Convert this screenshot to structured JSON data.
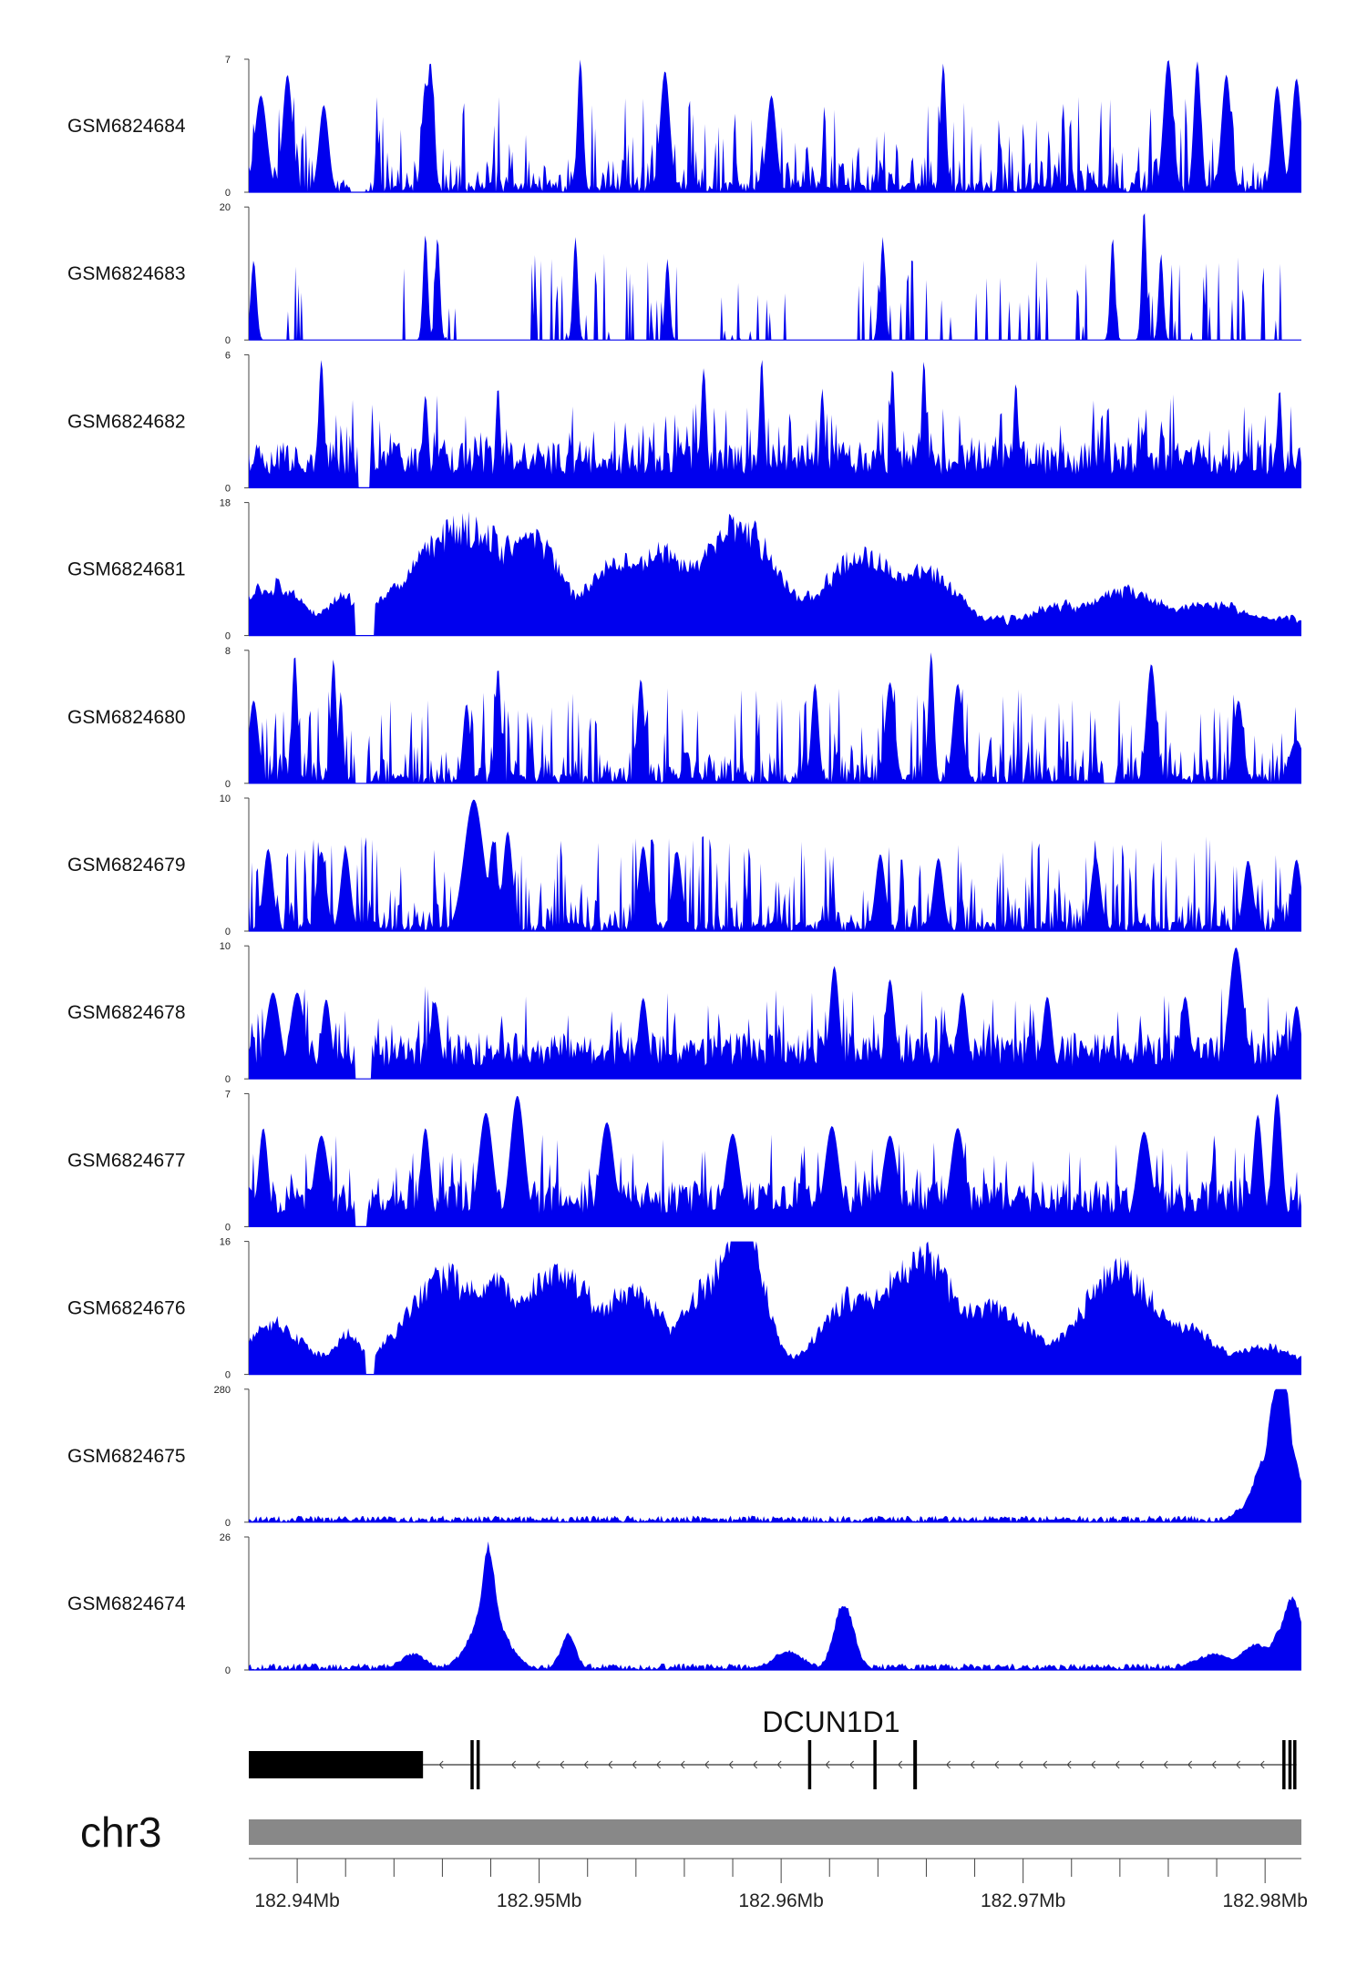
{
  "chart_data": {
    "type": "area",
    "title": "",
    "color": "#0000ee",
    "genome": {
      "chrom": "chr3",
      "xlim": [
        182.938,
        182.9815
      ],
      "axis_ticks": [
        182.94,
        182.95,
        182.96,
        182.97,
        182.98
      ],
      "axis_tick_labels": [
        "182.94Mb",
        "182.95Mb",
        "182.96Mb",
        "182.97Mb",
        "182.98Mb"
      ],
      "minor_ticks": [
        182.942,
        182.944,
        182.946,
        182.948,
        182.952,
        182.954,
        182.956,
        182.958,
        182.962,
        182.964,
        182.966,
        182.968,
        182.972,
        182.974,
        182.976,
        182.978
      ]
    },
    "gene": {
      "name": "DCUN1D1",
      "strand": "-",
      "start": 182.938,
      "end": 182.9813,
      "exons": [
        {
          "start": 182.938,
          "end": 182.9452,
          "thick": true
        },
        {
          "start": 182.9472,
          "end": 182.94725,
          "thick": false
        },
        {
          "start": 182.94745,
          "end": 182.9475,
          "thick": false
        },
        {
          "start": 182.96115,
          "end": 182.96125,
          "thick": false
        },
        {
          "start": 182.96385,
          "end": 182.96395,
          "thick": false
        },
        {
          "start": 182.9655,
          "end": 182.96565,
          "thick": false
        },
        {
          "start": 182.98075,
          "end": 182.9808,
          "thick": false
        },
        {
          "start": 182.981,
          "end": 182.98105,
          "thick": false
        },
        {
          "start": 182.9812,
          "end": 182.98125,
          "thick": false
        }
      ]
    },
    "series": [
      {
        "name": "GSM6824684",
        "ymax": 7,
        "ylim": [
          0,
          7
        ],
        "profile": "sparse",
        "seed": 11,
        "gaps": [
          [
            182.9422,
            182.9428
          ]
        ],
        "peaks": [
          [
            182.9385,
            5.1,
            0.00025
          ],
          [
            182.9396,
            6.2,
            0.0002
          ],
          [
            182.9411,
            4.6,
            0.0002
          ],
          [
            182.9453,
            5.8,
            0.00015
          ],
          [
            182.9455,
            6.9,
            0.00015
          ],
          [
            182.9517,
            7.0,
            0.00012
          ],
          [
            182.9552,
            6.4,
            0.0002
          ],
          [
            182.9596,
            5.1,
            0.0002
          ],
          [
            182.9667,
            6.8,
            0.00012
          ],
          [
            182.976,
            7.0,
            0.0002
          ],
          [
            182.9772,
            6.9,
            0.00015
          ],
          [
            182.9784,
            6.2,
            0.0002
          ],
          [
            182.9805,
            5.6,
            0.0002
          ],
          [
            182.9813,
            6.0,
            0.0002
          ]
        ]
      },
      {
        "name": "GSM6824683",
        "ymax": 20,
        "ylim": [
          0,
          20
        ],
        "profile": "spiky",
        "seed": 23,
        "gaps": [
          [
            182.9386,
            182.9393
          ],
          [
            182.9404,
            182.9443
          ],
          [
            182.9467,
            182.9493
          ],
          [
            182.9604,
            182.9625
          ]
        ],
        "peaks": [
          [
            182.9382,
            12.0,
            0.00012
          ],
          [
            182.9453,
            16.0,
            0.0001
          ],
          [
            182.9458,
            15.5,
            0.0001
          ],
          [
            182.9515,
            15.5,
            0.0001
          ],
          [
            182.9553,
            12.2,
            0.0001
          ],
          [
            182.9642,
            15.5,
            0.0001
          ],
          [
            182.9737,
            15.5,
            0.0001
          ],
          [
            182.975,
            19.8,
            0.0001
          ],
          [
            182.9757,
            13.0,
            0.0001
          ]
        ]
      },
      {
        "name": "GSM6824682",
        "ymax": 6,
        "ylim": [
          0,
          6
        ],
        "profile": "dense",
        "seed": 37,
        "gaps": [
          [
            182.9425,
            182.943
          ]
        ],
        "peaks": [
          [
            182.941,
            5.8,
            0.00012
          ],
          [
            182.9453,
            4.2,
            0.00012
          ],
          [
            182.9483,
            4.6,
            0.0001
          ],
          [
            182.9568,
            5.4,
            0.00012
          ],
          [
            182.9592,
            5.9,
            0.0001
          ],
          [
            182.9617,
            4.5,
            0.0001
          ],
          [
            182.9646,
            5.5,
            0.0001
          ],
          [
            182.9659,
            5.8,
            0.0001
          ],
          [
            182.9697,
            4.8,
            0.0001
          ],
          [
            182.9806,
            4.5,
            0.0001
          ]
        ]
      },
      {
        "name": "GSM6824681",
        "ymax": 18,
        "ylim": [
          0,
          18
        ],
        "profile": "broad",
        "seed": 41,
        "gaps": [
          [
            182.9424,
            182.9432
          ]
        ],
        "peaks": [
          [
            182.939,
            6.0,
            0.0012
          ],
          [
            182.942,
            4.5,
            0.0008
          ],
          [
            182.947,
            14.5,
            0.0022
          ],
          [
            182.9498,
            10.5,
            0.0012
          ],
          [
            182.9533,
            9.5,
            0.0012
          ],
          [
            182.9553,
            10.0,
            0.0012
          ],
          [
            182.9583,
            14.5,
            0.0015
          ],
          [
            182.9634,
            10.5,
            0.0016
          ],
          [
            182.9662,
            7.5,
            0.0012
          ],
          [
            182.9715,
            3.2,
            0.0012
          ],
          [
            182.9743,
            5.2,
            0.0016
          ],
          [
            182.9778,
            3.5,
            0.0015
          ],
          [
            182.9813,
            1.0,
            0.0004
          ]
        ]
      },
      {
        "name": "GSM6824680",
        "ymax": 8,
        "ylim": [
          0,
          8
        ],
        "profile": "sparse",
        "seed": 53,
        "gaps": [
          [
            182.9424,
            182.9429
          ],
          [
            182.9733,
            182.9738
          ]
        ],
        "peaks": [
          [
            182.9382,
            5.0,
            0.0002
          ],
          [
            182.9399,
            7.8,
            0.00012
          ],
          [
            182.9415,
            7.5,
            0.00012
          ],
          [
            182.9418,
            5.5,
            0.0001
          ],
          [
            182.947,
            4.8,
            0.00015
          ],
          [
            182.9483,
            7.0,
            0.00012
          ],
          [
            182.9542,
            6.3,
            0.00015
          ],
          [
            182.9614,
            6.0,
            0.00015
          ],
          [
            182.9645,
            6.1,
            0.0002
          ],
          [
            182.9662,
            7.9,
            0.00012
          ],
          [
            182.9673,
            6.0,
            0.0002
          ],
          [
            182.9753,
            7.2,
            0.0002
          ],
          [
            182.9789,
            5.0,
            0.0002
          ],
          [
            182.9813,
            2.6,
            0.0003
          ]
        ]
      },
      {
        "name": "GSM6824679",
        "ymax": 10,
        "ylim": [
          0,
          10
        ],
        "profile": "sparse",
        "seed": 67,
        "gaps": [],
        "peaks": [
          [
            182.9388,
            6.2,
            0.0002
          ],
          [
            182.941,
            6.0,
            0.0002
          ],
          [
            182.942,
            6.1,
            0.0002
          ],
          [
            182.9473,
            9.9,
            0.0004
          ],
          [
            182.9481,
            6.8,
            0.0002
          ],
          [
            182.9487,
            7.5,
            0.0002
          ],
          [
            182.9543,
            6.4,
            0.0002
          ],
          [
            182.9557,
            6.0,
            0.0002
          ],
          [
            182.9641,
            5.8,
            0.0002
          ],
          [
            182.9665,
            5.5,
            0.0002
          ],
          [
            182.973,
            5.6,
            0.0002
          ],
          [
            182.9793,
            5.3,
            0.0002
          ],
          [
            182.9813,
            5.4,
            0.0002
          ]
        ]
      },
      {
        "name": "GSM6824678",
        "ymax": 10,
        "ylim": [
          0,
          10
        ],
        "profile": "dense",
        "seed": 79,
        "gaps": [
          [
            182.9424,
            182.9431
          ]
        ],
        "peaks": [
          [
            182.939,
            6.5,
            0.0003
          ],
          [
            182.94,
            6.5,
            0.0003
          ],
          [
            182.9412,
            6.0,
            0.0002
          ],
          [
            182.9457,
            5.8,
            0.0002
          ],
          [
            182.9543,
            6.1,
            0.0002
          ],
          [
            182.9622,
            8.5,
            0.0002
          ],
          [
            182.9645,
            7.5,
            0.0002
          ],
          [
            182.9675,
            6.5,
            0.0002
          ],
          [
            182.971,
            6.2,
            0.0002
          ],
          [
            182.9767,
            6.2,
            0.0002
          ],
          [
            182.9788,
            9.9,
            0.0003
          ],
          [
            182.9813,
            5.5,
            0.0002
          ]
        ]
      },
      {
        "name": "GSM6824677",
        "ymax": 7,
        "ylim": [
          0,
          7
        ],
        "profile": "dense",
        "seed": 83,
        "gaps": [
          [
            182.9424,
            182.9429
          ]
        ],
        "peaks": [
          [
            182.9386,
            5.2,
            0.0002
          ],
          [
            182.941,
            4.8,
            0.0003
          ],
          [
            182.9453,
            5.2,
            0.0002
          ],
          [
            182.9478,
            6.0,
            0.0003
          ],
          [
            182.9491,
            6.9,
            0.0003
          ],
          [
            182.9528,
            5.5,
            0.0003
          ],
          [
            182.958,
            4.9,
            0.0003
          ],
          [
            182.9621,
            5.3,
            0.0003
          ],
          [
            182.9645,
            4.8,
            0.0003
          ],
          [
            182.9673,
            5.2,
            0.0003
          ],
          [
            182.975,
            5.0,
            0.0003
          ],
          [
            182.9797,
            5.9,
            0.0002
          ],
          [
            182.9805,
            7.0,
            0.0002
          ]
        ]
      },
      {
        "name": "GSM6824676",
        "ymax": 16,
        "ylim": [
          0,
          16
        ],
        "profile": "broad",
        "seed": 97,
        "gaps": [
          [
            182.9428,
            182.9432
          ]
        ],
        "peaks": [
          [
            182.939,
            5.5,
            0.0012
          ],
          [
            182.9421,
            4.0,
            0.0006
          ],
          [
            182.9462,
            11.5,
            0.0016
          ],
          [
            182.9485,
            9.0,
            0.0012
          ],
          [
            182.951,
            12.0,
            0.0014
          ],
          [
            182.954,
            9.5,
            0.0012
          ],
          [
            182.9574,
            12.0,
            0.0012
          ],
          [
            182.9585,
            15.8,
            0.0008
          ],
          [
            182.963,
            9.0,
            0.0012
          ],
          [
            182.9658,
            14.0,
            0.0014
          ],
          [
            182.969,
            7.5,
            0.0014
          ],
          [
            182.974,
            12.0,
            0.0016
          ],
          [
            182.977,
            4.5,
            0.001
          ],
          [
            182.98,
            2.5,
            0.0012
          ]
        ]
      },
      {
        "name": "GSM6824675",
        "ymax": 280,
        "ylim": [
          0,
          280
        ],
        "profile": "lowbase",
        "seed": 101,
        "gaps": [],
        "peaks": [
          [
            182.9716,
            6.0,
            0.0005
          ],
          [
            182.9793,
            35.0,
            0.0005
          ],
          [
            182.9801,
            140.0,
            0.0005
          ],
          [
            182.98055,
            270.0,
            0.00035
          ],
          [
            182.98085,
            205.0,
            0.0003
          ],
          [
            182.9813,
            95.0,
            0.0003
          ]
        ]
      },
      {
        "name": "GSM6824674",
        "ymax": 26,
        "ylim": [
          0,
          26
        ],
        "profile": "lowbase",
        "seed": 113,
        "gaps": [],
        "peaks": [
          [
            182.9448,
            3.0,
            0.0005
          ],
          [
            182.9479,
            26.0,
            0.00022
          ],
          [
            182.9479,
            12.0,
            0.0007
          ],
          [
            182.9512,
            7.0,
            0.0003
          ],
          [
            182.9603,
            3.5,
            0.0006
          ],
          [
            182.9626,
            13.5,
            0.0004
          ],
          [
            182.978,
            3.0,
            0.0008
          ],
          [
            182.9797,
            5.0,
            0.0006
          ],
          [
            182.98075,
            8.0,
            0.0004
          ],
          [
            182.9812,
            12.0,
            0.0004
          ]
        ]
      }
    ]
  }
}
